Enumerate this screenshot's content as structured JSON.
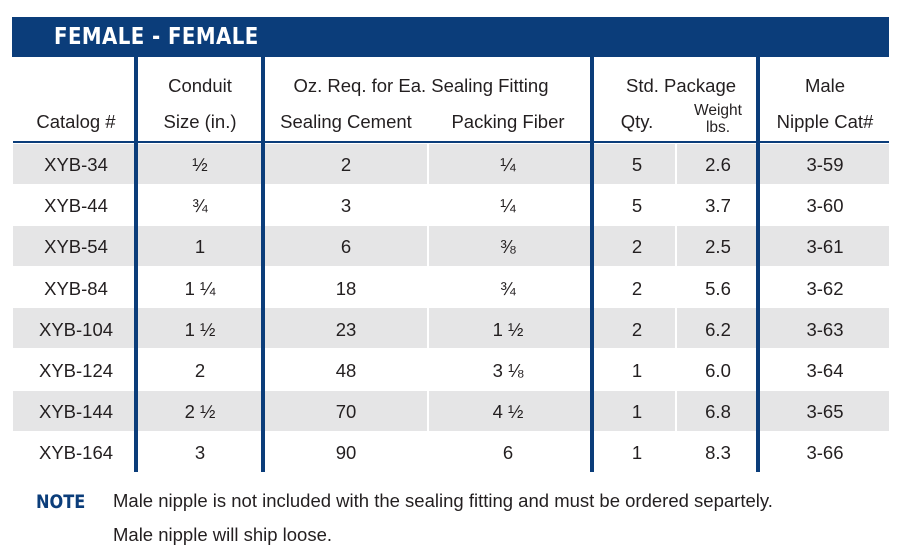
{
  "title": "FEMALE - FEMALE",
  "headers": {
    "catalog": "Catalog #",
    "conduit_top": "Conduit",
    "conduit_bottom": "Size (in.)",
    "oz_group": "Oz. Req. for Ea. Sealing Fitting",
    "sealing_cement": "Sealing Cement",
    "packing_fiber": "Packing Fiber",
    "std_package": "Std. Package",
    "qty": "Qty.",
    "weight_top": "Weight",
    "weight_bottom": "lbs.",
    "male_top": "Male",
    "male_bottom": "Nipple Cat#"
  },
  "rows": [
    {
      "catalog": "XYB-34",
      "size": "½",
      "cement": "2",
      "fiber": "¼",
      "qty": "5",
      "weight": "2.6",
      "nipple": "3-59"
    },
    {
      "catalog": "XYB-44",
      "size": "¾",
      "cement": "3",
      "fiber": "¼",
      "qty": "5",
      "weight": "3.7",
      "nipple": "3-60"
    },
    {
      "catalog": "XYB-54",
      "size": "1",
      "cement": "6",
      "fiber": "⅜",
      "qty": "2",
      "weight": "2.5",
      "nipple": "3-61"
    },
    {
      "catalog": "XYB-84",
      "size": "1 ¼",
      "cement": "18",
      "fiber": "¾",
      "qty": "2",
      "weight": "5.6",
      "nipple": "3-62"
    },
    {
      "catalog": "XYB-104",
      "size": "1 ½",
      "cement": "23",
      "fiber": "1 ½",
      "qty": "2",
      "weight": "6.2",
      "nipple": "3-63"
    },
    {
      "catalog": "XYB-124",
      "size": "2",
      "cement": "48",
      "fiber": "3 ⅛",
      "qty": "1",
      "weight": "6.0",
      "nipple": "3-64"
    },
    {
      "catalog": "XYB-144",
      "size": "2 ½",
      "cement": "70",
      "fiber": "4 ½",
      "qty": "1",
      "weight": "6.8",
      "nipple": "3-65"
    },
    {
      "catalog": "XYB-164",
      "size": "3",
      "cement": "90",
      "fiber": "6",
      "qty": "1",
      "weight": "8.3",
      "nipple": "3-66"
    }
  ],
  "note": {
    "label": "NOTE",
    "line1": "Male nipple is not included with the sealing fitting and must be ordered separtely.",
    "line2": "Male nipple will ship loose."
  },
  "colors": {
    "accent_navy": "#0b3d7a",
    "row_shade": "#e5e5e6",
    "text": "#231f20"
  }
}
